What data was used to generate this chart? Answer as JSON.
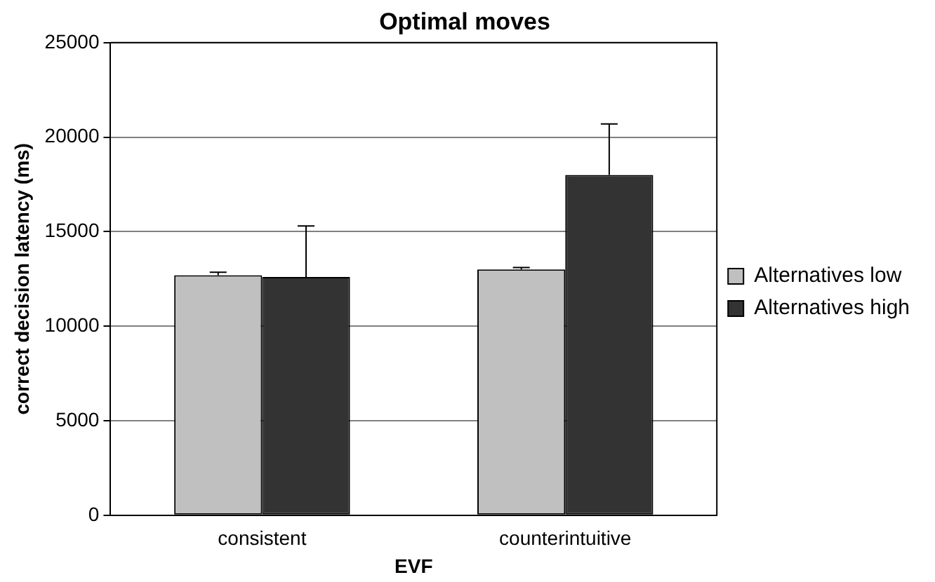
{
  "chart_data": {
    "type": "bar",
    "title": "Optimal moves",
    "xlabel": "EVF",
    "ylabel": "correct decision latency (ms)",
    "categories": [
      "consistent",
      "counterintuitive"
    ],
    "series": [
      {
        "name": "Alternatives low",
        "color": "#c0c0c0",
        "values": [
          12700,
          13000
        ],
        "errors": [
          [
            12700,
            12850
          ],
          [
            13000,
            13100
          ]
        ]
      },
      {
        "name": "Alternatives high",
        "color": "#333333",
        "values": [
          12600,
          18000
        ],
        "errors": [
          [
            12600,
            15300
          ],
          [
            18000,
            20700
          ]
        ]
      }
    ],
    "ylim": [
      0,
      25000
    ],
    "yticks": [
      0,
      5000,
      10000,
      15000,
      20000,
      25000
    ],
    "grid": "y",
    "legend": "right"
  }
}
